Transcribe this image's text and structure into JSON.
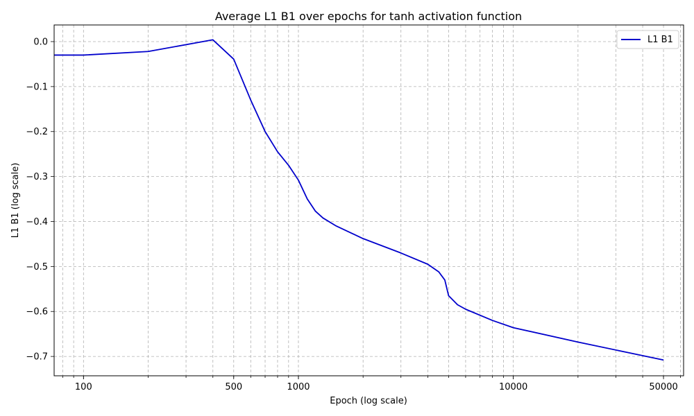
{
  "chart_data": {
    "type": "line",
    "title": "Average L1 B1 over epochs for tanh activation function",
    "xlabel": "Epoch (log scale)",
    "ylabel": "L1 B1 (log scale)",
    "xscale": "log",
    "xlim": [
      73,
      62000
    ],
    "ylim": [
      -0.743,
      0.037
    ],
    "x_ticks": [
      {
        "value": 100,
        "label": "100"
      },
      {
        "value": 500,
        "label": "500"
      },
      {
        "value": 1000,
        "label": "1000"
      },
      {
        "value": 10000,
        "label": "10000"
      },
      {
        "value": 50000,
        "label": "50000"
      }
    ],
    "y_ticks": [
      {
        "value": 0.0,
        "label": "0.0"
      },
      {
        "value": -0.1,
        "label": "−0.1"
      },
      {
        "value": -0.2,
        "label": "−0.2"
      },
      {
        "value": -0.3,
        "label": "−0.3"
      },
      {
        "value": -0.4,
        "label": "−0.4"
      },
      {
        "value": -0.5,
        "label": "−0.5"
      },
      {
        "value": -0.6,
        "label": "−0.6"
      },
      {
        "value": -0.7,
        "label": "−0.7"
      }
    ],
    "grid": true,
    "legend_position": "top-right",
    "series": [
      {
        "name": "L1 B1",
        "color": "#0000cc",
        "points": [
          [
            73,
            -0.03
          ],
          [
            100,
            -0.03
          ],
          [
            200,
            -0.022
          ],
          [
            400,
            0.004
          ],
          [
            500,
            -0.039
          ],
          [
            600,
            -0.13
          ],
          [
            700,
            -0.2
          ],
          [
            800,
            -0.245
          ],
          [
            900,
            -0.275
          ],
          [
            1000,
            -0.308
          ],
          [
            1100,
            -0.35
          ],
          [
            1200,
            -0.377
          ],
          [
            1300,
            -0.392
          ],
          [
            1500,
            -0.41
          ],
          [
            2000,
            -0.438
          ],
          [
            3000,
            -0.47
          ],
          [
            4000,
            -0.495
          ],
          [
            4500,
            -0.512
          ],
          [
            4800,
            -0.53
          ],
          [
            5000,
            -0.565
          ],
          [
            5500,
            -0.585
          ],
          [
            6000,
            -0.595
          ],
          [
            8000,
            -0.62
          ],
          [
            10000,
            -0.636
          ],
          [
            20000,
            -0.668
          ],
          [
            50000,
            -0.708
          ]
        ]
      }
    ]
  }
}
